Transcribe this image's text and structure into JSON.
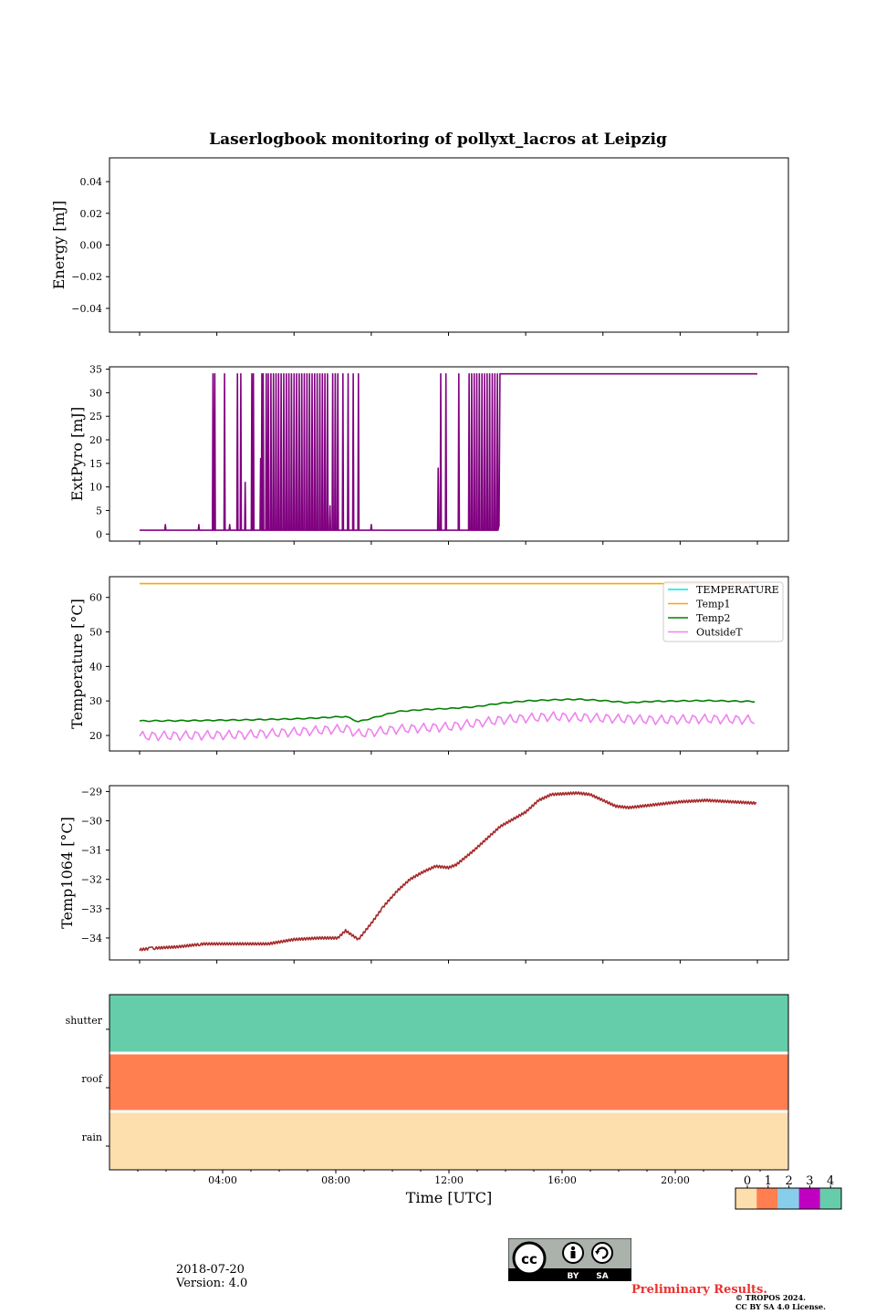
{
  "figure": {
    "title": "Laserlogbook monitoring of pollyxt_lacros at Leipzig",
    "xlabel": "Time [UTC]",
    "date": "2018-07-20",
    "version": "Version: 4.0",
    "preliminary": "Preliminary Results.",
    "copyright_line1": "© TROPOS 2024.",
    "copyright_line2": "CC BY SA 4.0 License.",
    "cc_badge": {
      "by": "BY",
      "sa": "SA",
      "cc": "cc"
    }
  },
  "chart_data": [
    {
      "type": "line",
      "ylabel": "Energy [mJ]",
      "ylim": [
        -0.055,
        0.055
      ],
      "yticks": [
        -0.04,
        -0.02,
        0.0,
        0.02,
        0.04
      ],
      "ytick_labels": [
        "−0.04",
        "−0.02",
        "0.00",
        "0.02",
        "0.04"
      ],
      "series": []
    },
    {
      "type": "line",
      "ylabel": "ExtPyro [mJ]",
      "ylim": [
        -1.5,
        35.5
      ],
      "yticks": [
        0,
        5,
        10,
        15,
        20,
        25,
        30,
        35
      ],
      "series": [
        {
          "color": "#800080",
          "baseline": 0.8,
          "high": 34,
          "high_from_hour": 14.0,
          "end_hour": 24.0,
          "spike_hours": [
            2.85,
            2.92,
            3.3,
            3.8,
            3.93,
            4.36,
            4.42,
            4.75,
            4.8,
            4.92,
            5.0,
            5.1,
            5.2,
            5.3,
            5.4,
            5.5,
            5.6,
            5.7,
            5.8,
            5.9,
            6.0,
            6.1,
            6.2,
            6.3,
            6.4,
            6.5,
            6.6,
            6.7,
            6.8,
            6.9,
            7.0,
            7.1,
            7.2,
            7.3,
            7.5,
            7.6,
            7.7,
            7.9,
            8.1,
            8.3,
            8.5,
            11.7,
            11.9,
            12.4,
            12.8,
            12.9,
            13.0,
            13.1,
            13.2,
            13.3,
            13.4,
            13.5,
            13.6,
            13.7,
            13.8,
            13.9
          ],
          "mid_spikes": [
            [
              1.0,
              2
            ],
            [
              2.3,
              2
            ],
            [
              3.5,
              2
            ],
            [
              4.1,
              11
            ],
            [
              4.7,
              16
            ],
            [
              7.4,
              6
            ],
            [
              9.0,
              2
            ],
            [
              11.6,
              14
            ]
          ]
        }
      ]
    },
    {
      "type": "line",
      "ylabel": "Temperature [°C]",
      "ylim": [
        15.5,
        66
      ],
      "yticks": [
        20,
        30,
        40,
        50,
        60
      ],
      "legend_position": "top-right",
      "series": [
        {
          "name": "TEMPERATURE",
          "color": "#00e5ee",
          "y": []
        },
        {
          "name": "Temp1",
          "color": "#ffa500",
          "x": [
            0,
            24
          ],
          "y": [
            64,
            64
          ]
        },
        {
          "name": "Temp2",
          "color": "#008000",
          "x": [
            0,
            2,
            4,
            6,
            7,
            8,
            8.5,
            10,
            11,
            12,
            13,
            14,
            15,
            16,
            17,
            18,
            19,
            20,
            22,
            24
          ],
          "y": [
            24.2,
            24.3,
            24.5,
            24.8,
            25.1,
            25.5,
            24.0,
            26.9,
            27.5,
            27.8,
            28.3,
            29.3,
            30.0,
            30.3,
            30.5,
            30.1,
            29.5,
            29.9,
            30.1,
            29.8
          ]
        },
        {
          "name": "OutsideT",
          "color": "#ee82ee",
          "x": [
            0,
            4,
            6,
            8,
            8.5,
            10,
            12,
            14,
            16,
            18,
            20,
            22,
            24
          ],
          "y": [
            19.8,
            20.2,
            21.0,
            22.0,
            20.5,
            21.8,
            22.5,
            24.5,
            25.5,
            25.0,
            24.5,
            24.8,
            24.5
          ],
          "oscillation": 1.4
        }
      ]
    },
    {
      "type": "line",
      "ylabel": "Temp1064 [°C]",
      "ylim": [
        -34.75,
        -28.8
      ],
      "yticks": [
        -34,
        -33,
        -32,
        -31,
        -30,
        -29
      ],
      "ytick_labels": [
        "−34",
        "−33",
        "−32",
        "−31",
        "−30",
        "−29"
      ],
      "series": [
        {
          "color": "#a52a2a",
          "x": [
            0,
            0.5,
            1.5,
            2.5,
            3.5,
            5,
            6,
            7,
            7.7,
            8,
            8.5,
            9,
            9.5,
            10,
            10.5,
            11,
            11.5,
            12,
            12.3,
            13,
            13.5,
            14,
            15,
            15.5,
            16,
            17,
            17.5,
            18,
            18.5,
            19,
            20,
            21,
            22,
            24
          ],
          "y": [
            -34.4,
            -34.35,
            -34.3,
            -34.2,
            -34.2,
            -34.2,
            -34.05,
            -34.0,
            -34.0,
            -33.75,
            -34.05,
            -33.5,
            -32.9,
            -32.4,
            -32.0,
            -31.75,
            -31.55,
            -31.6,
            -31.5,
            -31.0,
            -30.6,
            -30.2,
            -29.7,
            -29.3,
            -29.1,
            -29.05,
            -29.1,
            -29.3,
            -29.5,
            -29.55,
            -29.45,
            -29.35,
            -29.3,
            -29.4
          ]
        }
      ]
    },
    {
      "type": "heatmap",
      "rows": [
        "shutter",
        "roof",
        "rain"
      ],
      "row_values": [
        4,
        1,
        0
      ],
      "colorbar": {
        "ticks": [
          "0",
          "1",
          "2",
          "3",
          "4"
        ],
        "colors": [
          "#fddead",
          "#ff7f50",
          "#87ceeb",
          "#c000c0",
          "#66cdaa"
        ]
      },
      "x_tick_labels": [
        "04:00",
        "08:00",
        "12:00",
        "16:00",
        "20:00"
      ],
      "x_tick_hours": [
        4,
        8,
        12,
        16,
        20
      ]
    }
  ]
}
